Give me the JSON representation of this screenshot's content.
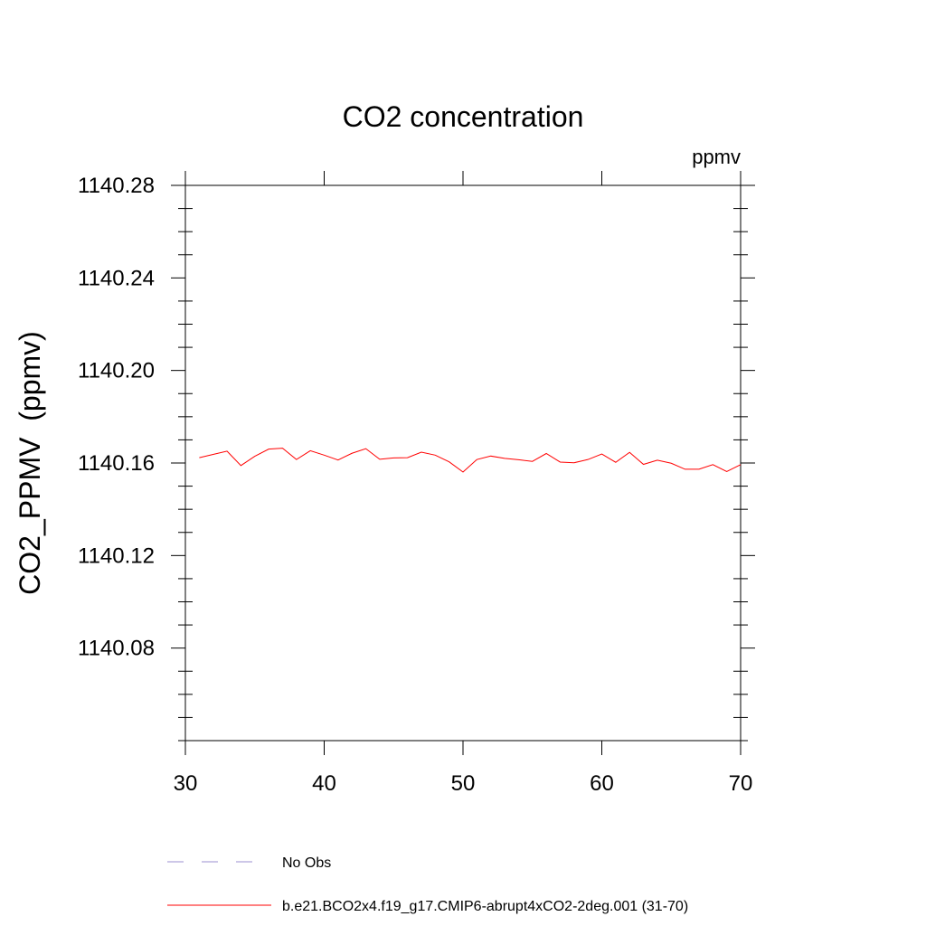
{
  "chart_data": {
    "type": "line",
    "title": "CO2 concentration",
    "units_label": "ppmv",
    "xlabel": "",
    "ylabel": "CO2_PPMV  (ppmv)",
    "xlim": [
      30,
      70
    ],
    "ylim": [
      1140.04,
      1140.28
    ],
    "x_ticks": [
      30,
      40,
      50,
      60,
      70
    ],
    "x_tick_labels": [
      "30",
      "40",
      "50",
      "60",
      "70"
    ],
    "y_ticks": [
      1140.08,
      1140.12,
      1140.16,
      1140.2,
      1140.24,
      1140.28
    ],
    "y_tick_labels": [
      "1140.08",
      "1140.12",
      "1140.16",
      "1140.20",
      "1140.24",
      "1140.28"
    ],
    "grid": false,
    "legend_position": "bottom",
    "series": [
      {
        "name": "b.e21.BCO2x4.f19_g17.CMIP6-abrupt4xCO2-2deg.001 (31-70)",
        "color": "#ff0000",
        "style": "solid",
        "x": [
          31,
          32,
          33,
          34,
          35,
          36,
          37,
          38,
          39,
          40,
          41,
          42,
          43,
          44,
          45,
          46,
          47,
          48,
          49,
          50,
          51,
          52,
          53,
          54,
          55,
          56,
          57,
          58,
          59,
          60,
          61,
          62,
          63,
          64,
          65,
          66,
          67,
          68,
          69,
          70
        ],
        "values": [
          1140.1623,
          1140.1637,
          1140.1651,
          1140.1589,
          1140.1629,
          1140.166,
          1140.1664,
          1140.1615,
          1140.1653,
          1140.1634,
          1140.1613,
          1140.1642,
          1140.1662,
          1140.1616,
          1140.1622,
          1140.1623,
          1140.1647,
          1140.1634,
          1140.1605,
          1140.1561,
          1140.1615,
          1140.163,
          1140.162,
          1140.1614,
          1140.1607,
          1140.1641,
          1140.1604,
          1140.1601,
          1140.1615,
          1140.1639,
          1140.1603,
          1140.1646,
          1140.1594,
          1140.1612,
          1140.1599,
          1140.1573,
          1140.1573,
          1140.1593,
          1140.1563,
          1140.1593
        ]
      },
      {
        "name": "No Obs",
        "color": "#9b8fd0",
        "style": "dashed",
        "x": [],
        "values": []
      }
    ]
  }
}
